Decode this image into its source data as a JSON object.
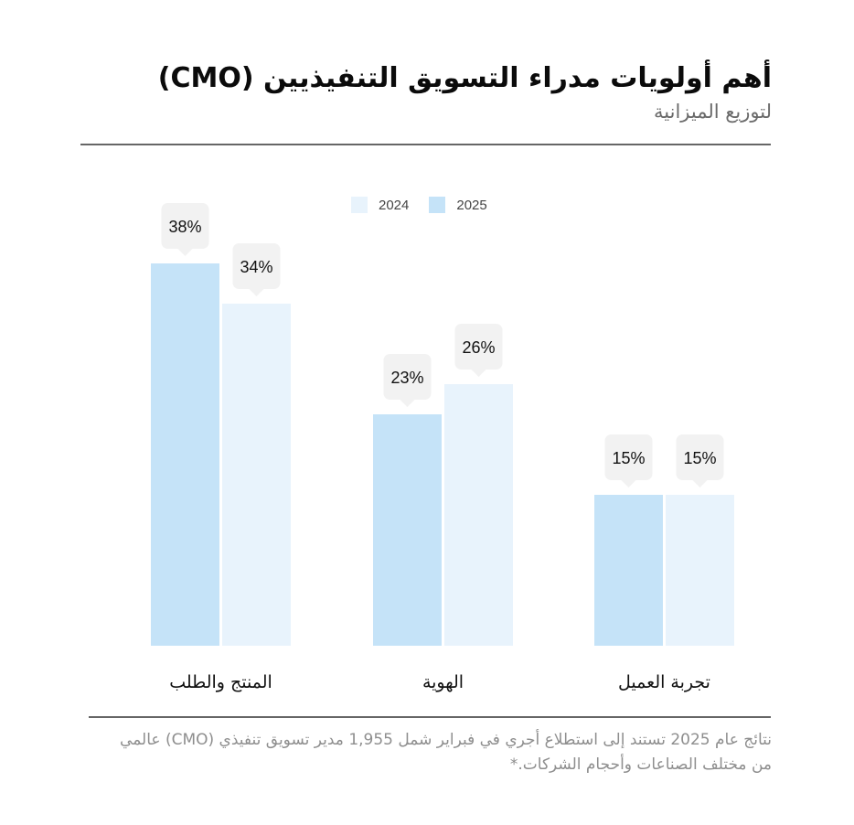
{
  "title": "أهم أولويات مدراء التسويق التنفيذيين (CMO)",
  "subtitle": "لتوزيع الميزانية",
  "footnote": "نتائج عام 2025 تستند إلى استطلاع أجري في فبراير شمل 1,955 مدير تسويق تنفيذي (CMO) عالمي من مختلف الصناعات وأحجام الشركات.*",
  "colors": {
    "series_2025": "#c5e3f8",
    "series_2024": "#e8f3fc",
    "label_bubble": "#f2f2f2",
    "rule": "#666666"
  },
  "chart_data": {
    "type": "bar",
    "title": "أهم أولويات مدراء التسويق التنفيذيين (CMO)",
    "subtitle": "لتوزيع الميزانية",
    "categories": [
      "المنتج والطلب",
      "الهوية",
      "تجربة العميل"
    ],
    "series": [
      {
        "name": "2025",
        "values": [
          38,
          23,
          15
        ],
        "color": "#c5e3f8"
      },
      {
        "name": "2024",
        "values": [
          34,
          26,
          15
        ],
        "color": "#e8f3fc"
      }
    ],
    "value_format": "{v}%",
    "ylim": [
      0,
      40
    ],
    "grid": false,
    "legend_position": "top"
  },
  "legend": [
    {
      "name": "2024",
      "color": "#e8f3fc"
    },
    {
      "name": "2025",
      "color": "#c5e3f8"
    }
  ]
}
